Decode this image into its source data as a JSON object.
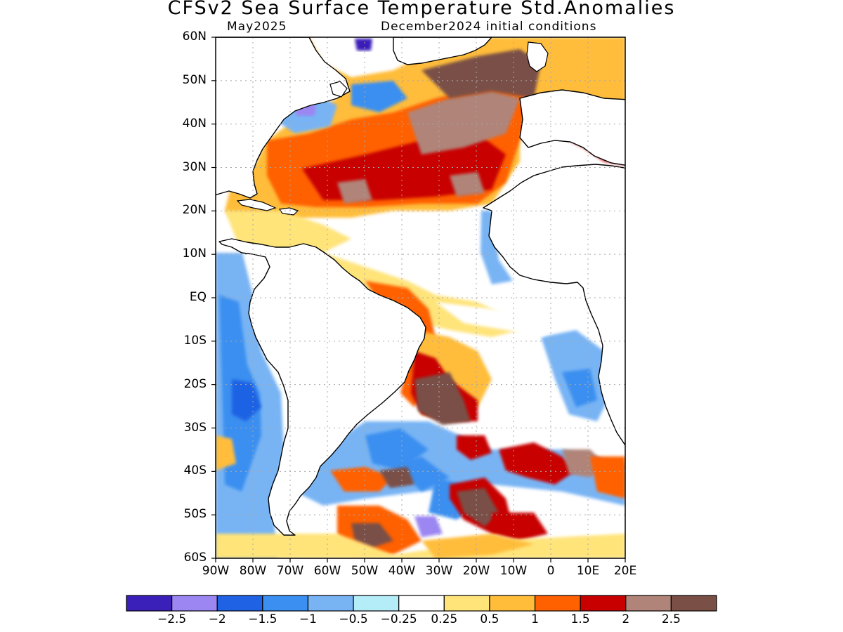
{
  "title": "CFSv2 Sea Surface Temperature Std.Anomalies",
  "subtitle_left": "May2025",
  "subtitle_right": "December2024 initial conditions",
  "y_axis": {
    "range": [
      -60,
      60
    ],
    "ticks": [
      {
        "value": 60,
        "label": "60N"
      },
      {
        "value": 50,
        "label": "50N"
      },
      {
        "value": 40,
        "label": "40N"
      },
      {
        "value": 30,
        "label": "30N"
      },
      {
        "value": 20,
        "label": "20N"
      },
      {
        "value": 10,
        "label": "10N"
      },
      {
        "value": 0,
        "label": "EQ"
      },
      {
        "value": -10,
        "label": "10S"
      },
      {
        "value": -20,
        "label": "20S"
      },
      {
        "value": -30,
        "label": "30S"
      },
      {
        "value": -40,
        "label": "40S"
      },
      {
        "value": -50,
        "label": "50S"
      },
      {
        "value": -60,
        "label": "60S"
      }
    ]
  },
  "x_axis": {
    "range": [
      -90,
      20
    ],
    "ticks": [
      {
        "value": -90,
        "label": "90W"
      },
      {
        "value": -80,
        "label": "80W"
      },
      {
        "value": -70,
        "label": "70W"
      },
      {
        "value": -60,
        "label": "60W"
      },
      {
        "value": -50,
        "label": "50W"
      },
      {
        "value": -40,
        "label": "40W"
      },
      {
        "value": -30,
        "label": "30W"
      },
      {
        "value": -20,
        "label": "20W"
      },
      {
        "value": -10,
        "label": "10W"
      },
      {
        "value": 0,
        "label": "0"
      },
      {
        "value": 10,
        "label": "10E"
      },
      {
        "value": 20,
        "label": "20E"
      }
    ]
  },
  "colorbar": {
    "colors": [
      "#3a1fb8",
      "#9b86f2",
      "#1f62e4",
      "#3a8ff0",
      "#78b4f4",
      "#b4ecf8",
      "#ffffff",
      "#ffe47a",
      "#ffbd3a",
      "#ff6000",
      "#c80000",
      "#b08478",
      "#7a5046"
    ],
    "labels": [
      "-2.5",
      "-2",
      "-1.5",
      "-1",
      "-0.5",
      "-0.25",
      "0.25",
      "0.5",
      "1",
      "1.5",
      "2",
      "2.5"
    ]
  },
  "grid": true
}
